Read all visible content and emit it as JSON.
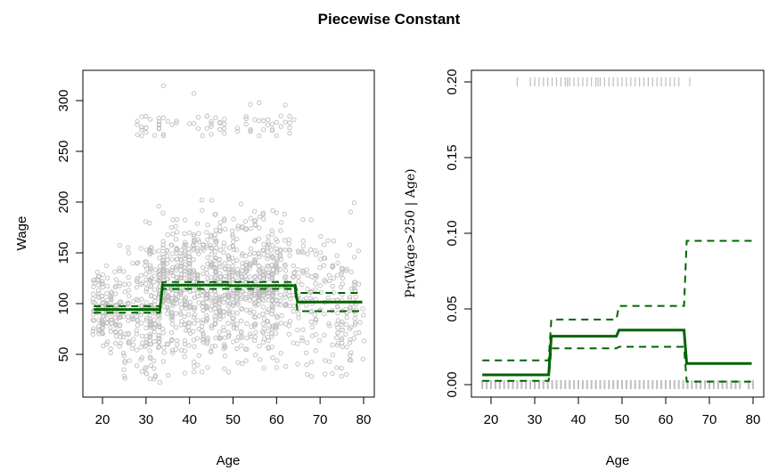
{
  "figure": {
    "title": "Piecewise Constant"
  },
  "colors": {
    "fit": "#006400",
    "points": "#BEBEBE",
    "axis": "#000000"
  },
  "chart_data": [
    {
      "type": "scatter",
      "panel": "left",
      "title": "",
      "xlabel": "Age",
      "ylabel": "Wage",
      "xlim": [
        17,
        81
      ],
      "ylim": [
        15,
        330
      ],
      "xticks": [
        20,
        30,
        40,
        50,
        60,
        70,
        80
      ],
      "yticks": [
        50,
        100,
        150,
        200,
        250,
        300
      ],
      "xtick_labels": [
        "20",
        "30",
        "40",
        "50",
        "60",
        "70",
        "80"
      ],
      "ytick_labels": [
        "50",
        "100",
        "150",
        "200",
        "250",
        "300"
      ],
      "grid": false,
      "scatter_description": "Gray open circles of wage vs age; dense cloud roughly 30-200 across ages 18-80, sparse band near 270-320 for ages 28-65",
      "fit": {
        "name": "Piecewise constant fit",
        "style": "solid",
        "steps": [
          {
            "x_from": 18,
            "x_to": 33.5,
            "y": 94.2
          },
          {
            "x_from": 33.5,
            "x_to": 49,
            "y": 118.2
          },
          {
            "x_from": 49,
            "x_to": 64.5,
            "y": 117.8
          },
          {
            "x_from": 64.5,
            "x_to": 80,
            "y": 101.5
          }
        ]
      },
      "upper_band": {
        "name": "Upper 95% CI",
        "style": "dashed",
        "steps": [
          {
            "x_from": 18,
            "x_to": 33.5,
            "y": 97.5
          },
          {
            "x_from": 33.5,
            "x_to": 64.5,
            "y": 121.3
          },
          {
            "x_from": 64.5,
            "x_to": 80,
            "y": 110.5
          }
        ]
      },
      "lower_band": {
        "name": "Lower 95% CI",
        "style": "dashed",
        "steps": [
          {
            "x_from": 18,
            "x_to": 33.5,
            "y": 91.0
          },
          {
            "x_from": 33.5,
            "x_to": 64.5,
            "y": 114.5
          },
          {
            "x_from": 64.5,
            "x_to": 80,
            "y": 92.5
          }
        ]
      }
    },
    {
      "type": "line",
      "panel": "right",
      "title": "",
      "xlabel": "Age",
      "ylabel": "Pr(Wage>250 | Age)",
      "xlim": [
        17,
        81
      ],
      "ylim": [
        -0.008,
        0.208
      ],
      "xticks": [
        20,
        30,
        40,
        50,
        60,
        70,
        80
      ],
      "yticks": [
        0.0,
        0.05,
        0.1,
        0.15,
        0.2
      ],
      "xtick_labels": [
        "20",
        "30",
        "40",
        "50",
        "60",
        "70",
        "80"
      ],
      "ytick_labels": [
        "0.00",
        "0.05",
        "0.10",
        "0.15",
        "0.20"
      ],
      "grid": false,
      "fit": {
        "name": "Fitted probability",
        "style": "solid",
        "steps": [
          {
            "x_from": 18,
            "x_to": 33.5,
            "y": 0.0065
          },
          {
            "x_from": 33.5,
            "x_to": 49,
            "y": 0.032
          },
          {
            "x_from": 49,
            "x_to": 64.5,
            "y": 0.036
          },
          {
            "x_from": 64.5,
            "x_to": 80,
            "y": 0.014
          }
        ]
      },
      "upper_band": {
        "name": "Upper 95% CI",
        "style": "dashed",
        "steps": [
          {
            "x_from": 18,
            "x_to": 33.5,
            "y": 0.016
          },
          {
            "x_from": 33.5,
            "x_to": 49,
            "y": 0.043
          },
          {
            "x_from": 49,
            "x_to": 64.5,
            "y": 0.052
          },
          {
            "x_from": 64.5,
            "x_to": 80,
            "y": 0.095
          }
        ]
      },
      "lower_band": {
        "name": "Lower 95% CI",
        "style": "dashed",
        "steps": [
          {
            "x_from": 18,
            "x_to": 33.5,
            "y": 0.0025
          },
          {
            "x_from": 33.5,
            "x_to": 49,
            "y": 0.024
          },
          {
            "x_from": 49,
            "x_to": 64.5,
            "y": 0.025
          },
          {
            "x_from": 64.5,
            "x_to": 80,
            "y": 0.002
          }
        ]
      },
      "rug_top_ages": [
        26,
        29,
        30,
        31,
        32,
        33,
        34,
        35,
        36,
        37,
        37.5,
        38,
        39,
        40,
        41,
        42,
        43,
        44,
        44.5,
        45,
        46,
        47,
        48,
        49,
        50,
        51,
        52,
        53,
        54,
        55,
        56,
        57,
        58,
        59,
        60,
        61,
        62,
        63,
        65.5
      ],
      "rug_bottom_ages": [
        18,
        19,
        20,
        21,
        22,
        23,
        24,
        25,
        26,
        27,
        28,
        29,
        30,
        31,
        32,
        33,
        34,
        35,
        36,
        37,
        38,
        39,
        40,
        41,
        42,
        43,
        44,
        45,
        46,
        47,
        48,
        49,
        50,
        51,
        52,
        53,
        54,
        55,
        56,
        57,
        58,
        59,
        60,
        61,
        62,
        63,
        64,
        65,
        66,
        67,
        68,
        69,
        70,
        71,
        72,
        73,
        74,
        75,
        76,
        77,
        79,
        80
      ]
    }
  ]
}
